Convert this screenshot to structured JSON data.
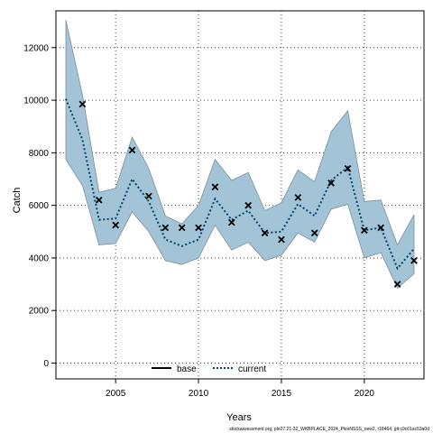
{
  "chart_data": {
    "type": "line",
    "xlabel": "Years",
    "ylabel": "Catch",
    "xlim": [
      2001.4,
      2023.6
    ],
    "ylim": [
      -600,
      13400
    ],
    "x_ticks": [
      2005,
      2010,
      2015,
      2020
    ],
    "y_ticks": [
      0,
      2000,
      4000,
      6000,
      8000,
      10000,
      12000
    ],
    "x_tick_labels": [
      "2005",
      "2010",
      "2015",
      "2020"
    ],
    "y_tick_labels": [
      "0",
      "2000",
      "4000",
      "6000",
      "8000",
      "10000",
      "12000"
    ],
    "grid": true,
    "legend": {
      "position": "bottom-center",
      "entries": [
        "base",
        "current"
      ]
    },
    "footnote": "stockassessment.org, ple27.21-32_WKBPLACE_2024_PlesNSSS_new2, r18464, git:c9c61ac53a0d",
    "x": [
      2002,
      2003,
      2004,
      2005,
      2006,
      2007,
      2008,
      2009,
      2010,
      2011,
      2012,
      2013,
      2014,
      2015,
      2016,
      2017,
      2018,
      2019,
      2020,
      2021,
      2022,
      2023
    ],
    "series": [
      {
        "name": "current",
        "style": "dotted",
        "color": "#00446a",
        "values": [
          10050,
          8500,
          5450,
          5500,
          7000,
          6150,
          4700,
          4450,
          4700,
          6250,
          5450,
          5800,
          4950,
          5000,
          6050,
          5600,
          6950,
          7450,
          5050,
          5150,
          3600,
          4350
        ]
      }
    ],
    "band": {
      "color": "#a3c4d6",
      "upper": [
        13050,
        10200,
        6500,
        6650,
        8600,
        7400,
        5600,
        5300,
        6000,
        7750,
        6950,
        7250,
        5800,
        6100,
        7350,
        6900,
        8800,
        9600,
        6150,
        6200,
        4500,
        5650
      ],
      "lower": [
        7750,
        6750,
        4500,
        4550,
        5750,
        5000,
        3900,
        3750,
        4000,
        5250,
        4300,
        4600,
        3900,
        4100,
        4950,
        4600,
        5850,
        6050,
        4000,
        4200,
        2850,
        3400
      ]
    },
    "observed": {
      "marker": "x",
      "values": [
        null,
        9850,
        6200,
        5250,
        8100,
        6350,
        5150,
        5150,
        5150,
        6700,
        5350,
        6000,
        4950,
        4700,
        6300,
        4950,
        6850,
        7400,
        5050,
        5150,
        3000,
        3900
      ]
    },
    "colors": {
      "band_edge": "#7a8f9c",
      "grid": "#404040"
    }
  }
}
